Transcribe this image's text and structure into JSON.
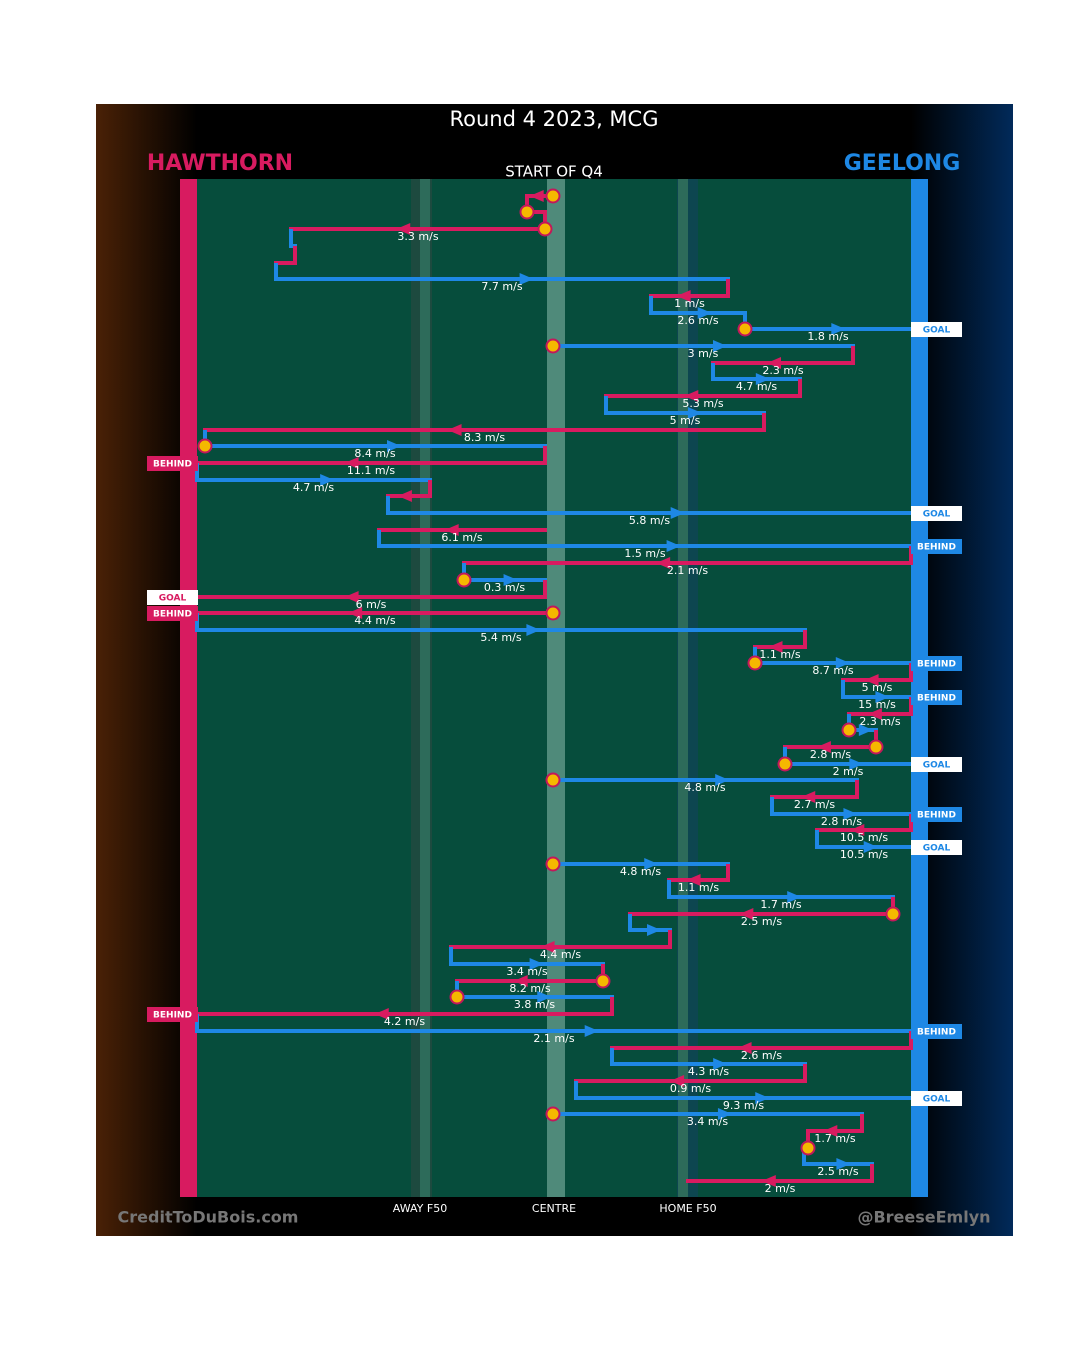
{
  "title": "Round 4 2023, MCG",
  "home": {
    "name": "HAWTHORN",
    "color": "#d81b60"
  },
  "away": {
    "name": "GEELONG",
    "color": "#1e88e5"
  },
  "start_label": "START OF Q4",
  "field_labels": [
    "AWAY F50",
    "CENTRE",
    "HOME F50"
  ],
  "credit_left": "CreditToDuBois.com",
  "credit_right": "@BreeseEmlyn",
  "passes": [
    {
      "speed": "3.3 m/s"
    },
    {
      "speed": "7.7 m/s"
    },
    {
      "speed": "1 m/s"
    },
    {
      "speed": "2.6 m/s"
    },
    {
      "speed": "1.8 m/s",
      "event": "GOAL"
    },
    {
      "speed": "3 m/s"
    },
    {
      "speed": "2.3 m/s"
    },
    {
      "speed": "4.7 m/s"
    },
    {
      "speed": "5.3 m/s"
    },
    {
      "speed": "5 m/s"
    },
    {
      "speed": "8.3 m/s"
    },
    {
      "speed": "8.4 m/s"
    },
    {
      "speed": "11.1 m/s",
      "event": "BEHIND"
    },
    {
      "speed": "4.7 m/s"
    },
    {
      "speed": "5.8 m/s",
      "event": "GOAL"
    },
    {
      "speed": "6.1 m/s"
    },
    {
      "speed": "1.5 m/s",
      "event": "BEHIND"
    },
    {
      "speed": "2.1 m/s"
    },
    {
      "speed": "0.3 m/s"
    },
    {
      "speed": "6 m/s",
      "event": "GOAL"
    },
    {
      "speed": "4.4 m/s",
      "event": "BEHIND"
    },
    {
      "speed": "5.4 m/s"
    },
    {
      "speed": "1.1 m/s"
    },
    {
      "speed": "8.7 m/s",
      "event": "BEHIND"
    },
    {
      "speed": "5 m/s"
    },
    {
      "speed": "15 m/s",
      "event": "BEHIND"
    },
    {
      "speed": "2.3 m/s"
    },
    {
      "speed": "2.8 m/s"
    },
    {
      "speed": "2 m/s",
      "event": "GOAL"
    },
    {
      "speed": "4.8 m/s"
    },
    {
      "speed": "2.7 m/s"
    },
    {
      "speed": "2.8 m/s",
      "event": "BEHIND"
    },
    {
      "speed": "10.5 m/s"
    },
    {
      "speed": "10.5 m/s",
      "event": "GOAL"
    },
    {
      "speed": "4.8 m/s"
    },
    {
      "speed": "1.1 m/s"
    },
    {
      "speed": "1.7 m/s"
    },
    {
      "speed": "2.5 m/s"
    },
    {
      "speed": "4.4 m/s"
    },
    {
      "speed": "3.4 m/s"
    },
    {
      "speed": "8.2 m/s"
    },
    {
      "speed": "3.8 m/s"
    },
    {
      "speed": "4.2 m/s",
      "event": "BEHIND"
    },
    {
      "speed": "2.1 m/s",
      "event": "BEHIND"
    },
    {
      "speed": "2.6 m/s"
    },
    {
      "speed": "4.3 m/s"
    },
    {
      "speed": "0.9 m/s"
    },
    {
      "speed": "9.3 m/s",
      "event": "GOAL"
    },
    {
      "speed": "3.4 m/s"
    },
    {
      "speed": "1.7 m/s"
    },
    {
      "speed": "2.5 m/s"
    },
    {
      "speed": "2 m/s"
    }
  ]
}
